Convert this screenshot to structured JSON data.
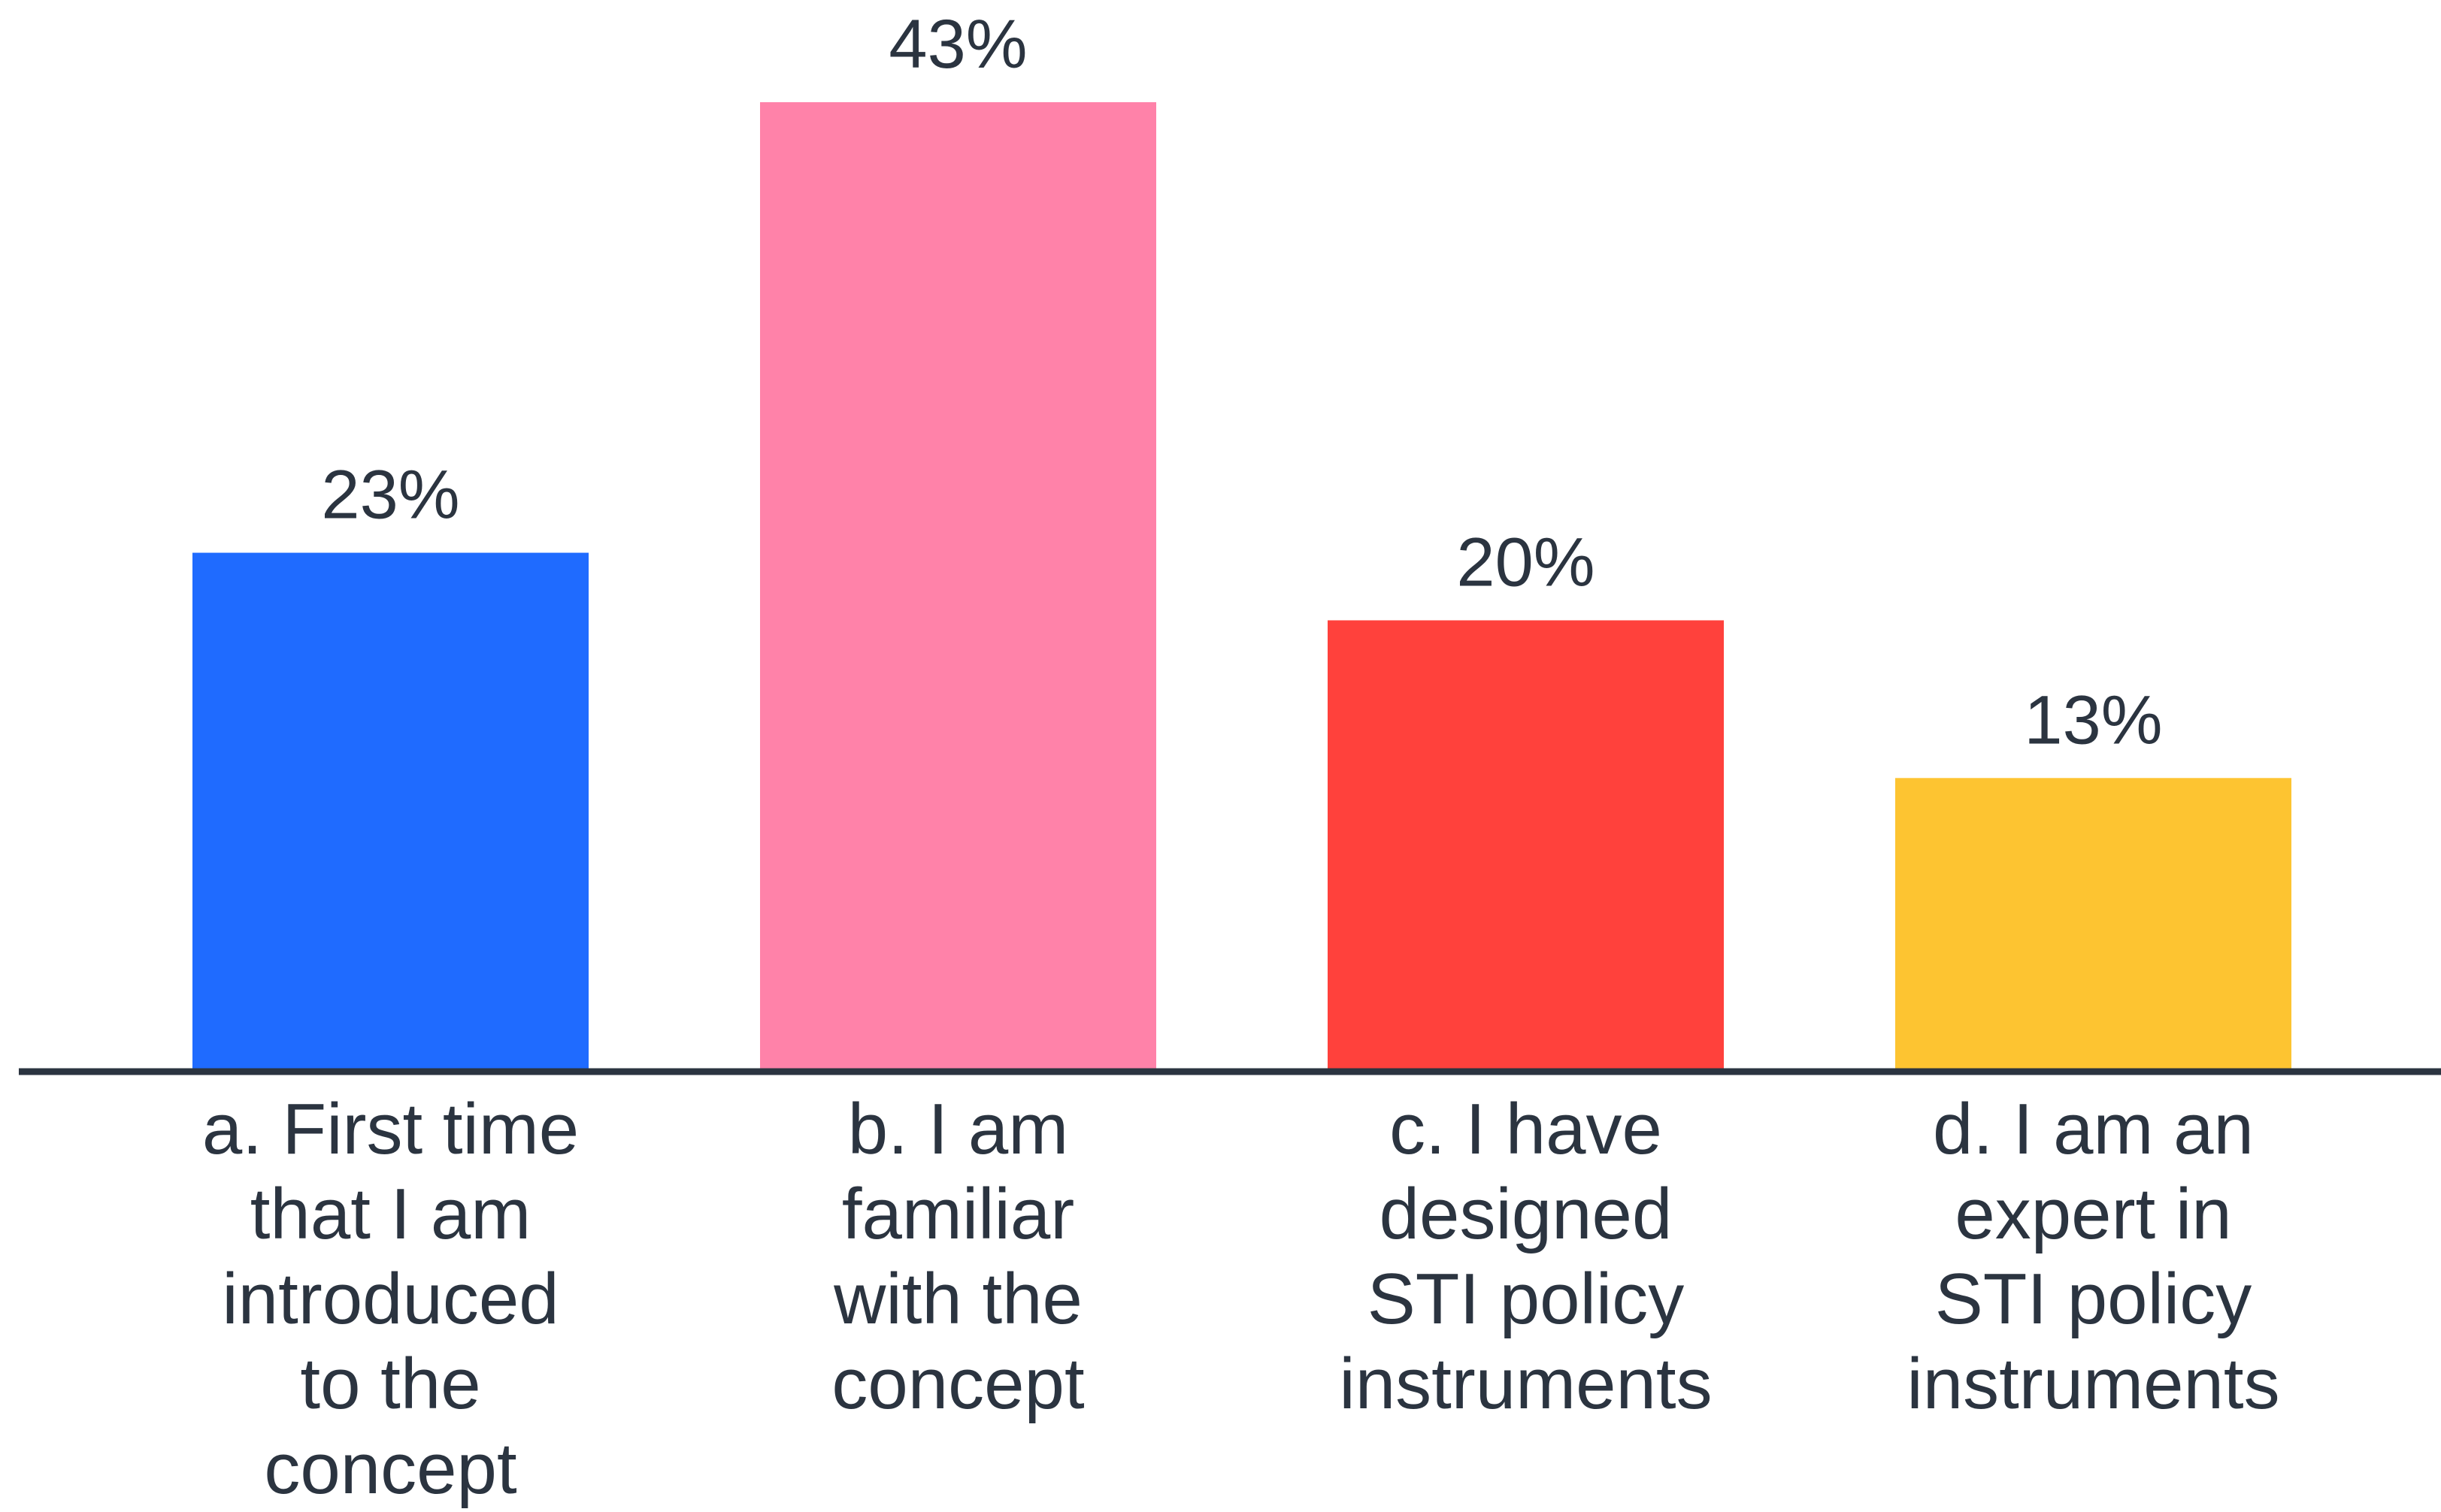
{
  "chart_data": {
    "type": "bar",
    "categories": [
      "a. First time that I am introduced to the concept",
      "b. I am familiar with the concept",
      "c. I have designed STI policy instruments",
      "d. I am an expert in STI policy instruments"
    ],
    "category_lines": [
      [
        "a. First time",
        "that I am",
        "introduced",
        "to the",
        "concept"
      ],
      [
        "b. I am",
        "familiar",
        "with the",
        "concept"
      ],
      [
        "c. I have",
        "designed",
        "STI policy",
        "instruments"
      ],
      [
        "d. I am an",
        "expert in",
        "STI policy",
        "instruments"
      ]
    ],
    "values": [
      23,
      43,
      20,
      13
    ],
    "value_labels": [
      "23%",
      "43%",
      "20%",
      "13%"
    ],
    "colors": [
      "#1f6bff",
      "#ff82a9",
      "#ff413c",
      "#fdc431"
    ],
    "axis_color": "#2b3440",
    "text_color": "#2b3440",
    "ylim": [
      0,
      43
    ],
    "grid": false,
    "legend": "none"
  }
}
